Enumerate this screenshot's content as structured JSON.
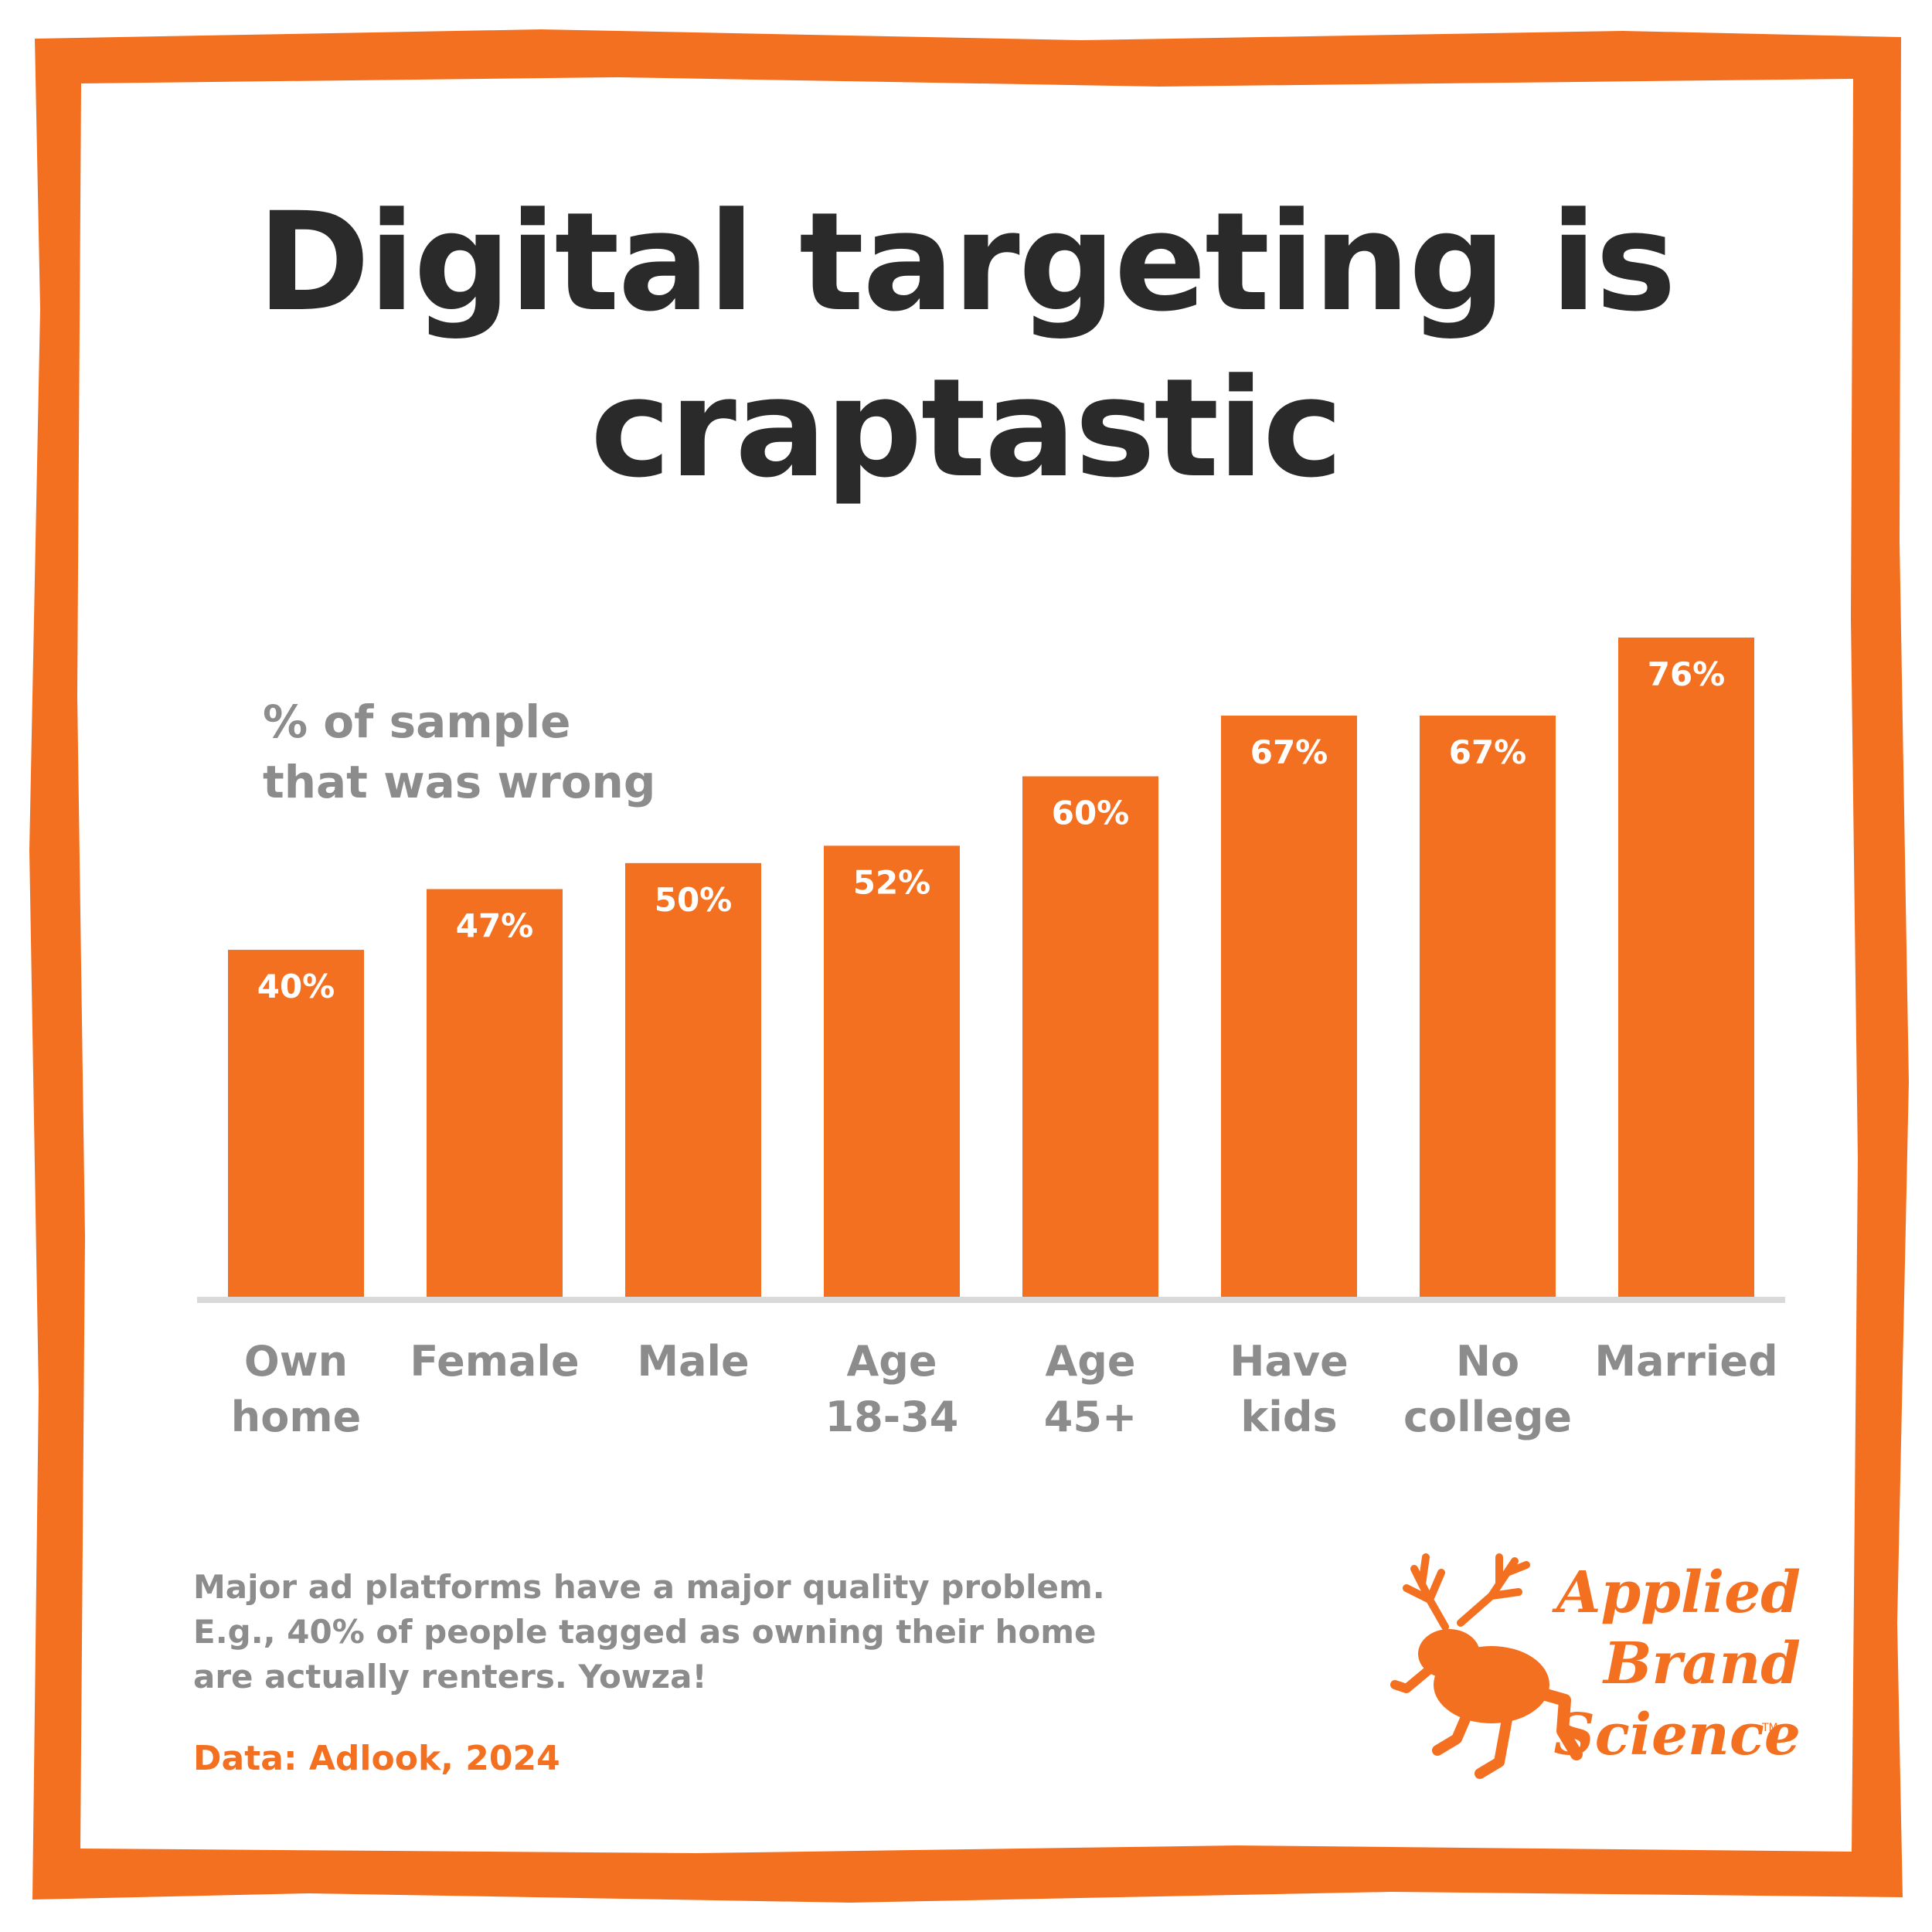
{
  "title": {
    "line1": "Digital targeting is",
    "line2": "craptastic"
  },
  "chart_data": {
    "type": "bar",
    "ylabel_lines": [
      "% of sample",
      "that was wrong"
    ],
    "categories": [
      [
        "Own",
        "home"
      ],
      [
        "Female"
      ],
      [
        "Male"
      ],
      [
        "Age",
        "18-34"
      ],
      [
        "Age",
        "45+"
      ],
      [
        "Have",
        "kids"
      ],
      [
        "No",
        "college"
      ],
      [
        "Married"
      ]
    ],
    "values": [
      40,
      47,
      50,
      52,
      60,
      67,
      67,
      76
    ],
    "value_labels": [
      "40%",
      "47%",
      "50%",
      "52%",
      "60%",
      "67%",
      "67%",
      "76%"
    ],
    "ylim": [
      0,
      76
    ],
    "grid": false,
    "bar_color": "#f47021",
    "baseline_color": "#d9d9d9"
  },
  "footnote": {
    "line1": "Major ad platforms have a major quality problem.",
    "line2": "E.g., 40% of people tagged as owning their home",
    "line3": "are actually renters. Yowza!"
  },
  "source": "Data: Adlook, 2024",
  "logo": {
    "line1": "Applied",
    "line2": "Brand",
    "line3": "Science",
    "tm": "TM",
    "icon": "antlered-frog-icon",
    "color": "#f47021"
  },
  "frame_color": "#f47021"
}
